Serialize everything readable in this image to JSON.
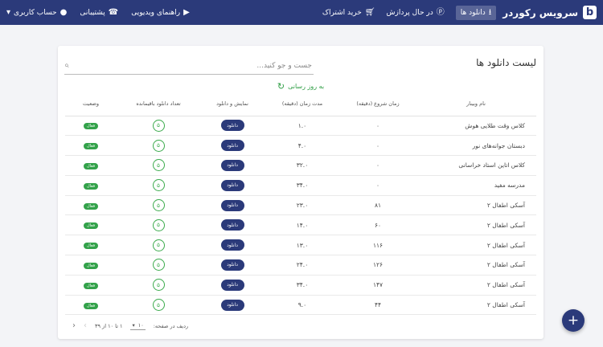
{
  "header": {
    "brand_name": "سرویس رکوردر",
    "brand_logo_letter": "b",
    "nav": [
      {
        "label": "دانلود ها",
        "icon": "download-icon",
        "active": true
      },
      {
        "label": "در حال پردازش",
        "icon": "processing-icon"
      },
      {
        "label": "خرید اشتراک",
        "icon": "cart-icon"
      }
    ],
    "nav_left": [
      {
        "label": "راهنمای ویدیویی",
        "icon": "video-icon"
      },
      {
        "label": "پشتیبانی",
        "icon": "phone-icon"
      },
      {
        "label": "حساب کاربری",
        "icon": "user-icon"
      }
    ]
  },
  "list": {
    "title": "لیست دانلود ها",
    "search_placeholder": "جست و جو کنید...",
    "refresh_label": "به روز رسانی",
    "columns": [
      "نام وبینار",
      "زمان شروع (دقیقه)",
      "مدت زمان (دقیقه)",
      "نمایش و دانلود",
      "تعداد دانلود باقیمانده",
      "وضعیت"
    ],
    "rows": [
      {
        "name": "کلاس وقت طلایی هوش",
        "start": "۰",
        "duration": "۱.۰",
        "btn": "دانلود",
        "remaining": "۵",
        "status": "فعال"
      },
      {
        "name": "دبستان جوانه‌های نور",
        "start": "۰",
        "duration": "۴.۰",
        "btn": "دانلود",
        "remaining": "۵",
        "status": "فعال"
      },
      {
        "name": "کلاس اتاین استاد خراسانی",
        "start": "۰",
        "duration": "۳۲.۰",
        "btn": "دانلود",
        "remaining": "۵",
        "status": "فعال"
      },
      {
        "name": "مدرسه مفید",
        "start": "۰",
        "duration": "۳۴.۰",
        "btn": "دانلود",
        "remaining": "۵",
        "status": "فعال"
      },
      {
        "name": "آسکی اطفال ۲",
        "start": "۸۱",
        "duration": "۲۳.۰",
        "btn": "دانلود",
        "remaining": "۵",
        "status": "فعال"
      },
      {
        "name": "آسکی اطفال ۲",
        "start": "۶۰",
        "duration": "۱۴.۰",
        "btn": "دانلود",
        "remaining": "۵",
        "status": "فعال"
      },
      {
        "name": "آسکی اطفال ۲",
        "start": "۱۱۶",
        "duration": "۱۳.۰",
        "btn": "دانلود",
        "remaining": "۵",
        "status": "فعال"
      },
      {
        "name": "آسکی اطفال ۲",
        "start": "۱۲۶",
        "duration": "۲۴.۰",
        "btn": "دانلود",
        "remaining": "۵",
        "status": "فعال"
      },
      {
        "name": "آسکی اطفال ۲",
        "start": "۱۴۷",
        "duration": "۳۴.۰",
        "btn": "دانلود",
        "remaining": "۵",
        "status": "فعال"
      },
      {
        "name": "آسکی اطفال ۲",
        "start": "۴۴",
        "duration": "۹.۰",
        "btn": "دانلود",
        "remaining": "۵",
        "status": "فعال"
      }
    ],
    "pagination": {
      "rows_per_page_label": "ردیف در صفحه:",
      "rows_per_page": "۱۰",
      "range": "۱ تا ۱۰ از ۳۹"
    }
  },
  "fab_label": "+",
  "colors": {
    "primary": "#2b3a7a",
    "accent_green": "#33a24a"
  }
}
